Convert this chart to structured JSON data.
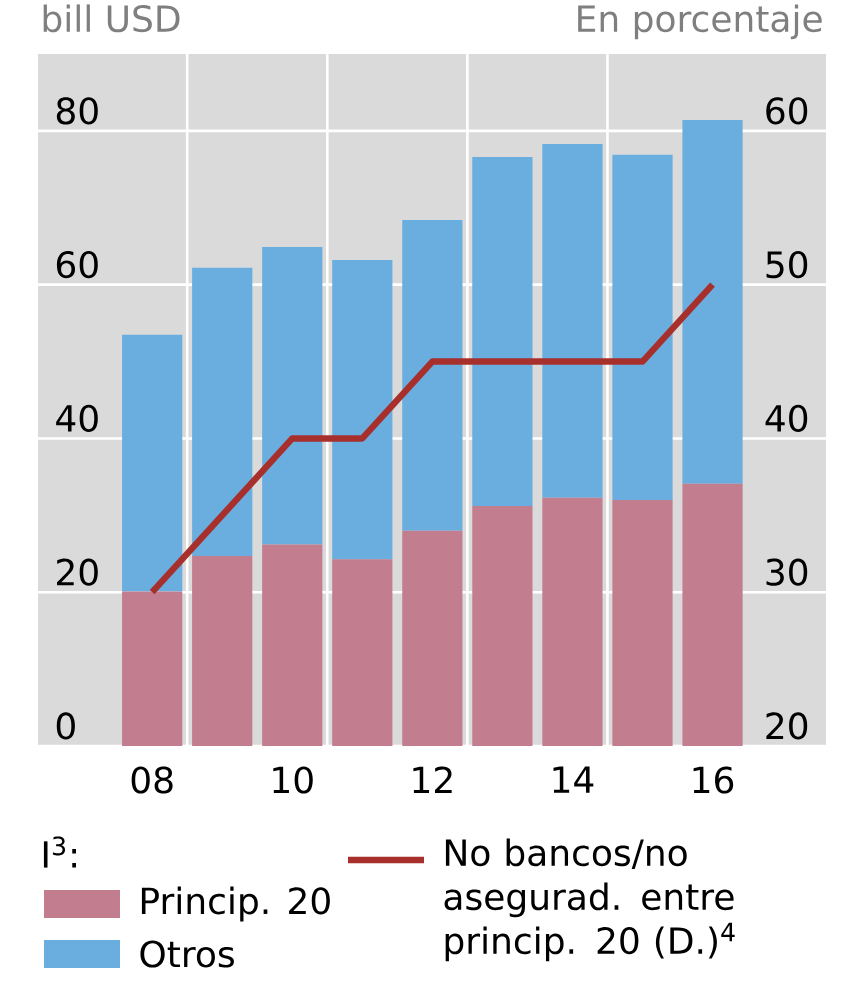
{
  "chart_data": {
    "type": "bar",
    "stacked": true,
    "ylabel": "bill USD",
    "y2label": "En porcentaje",
    "legend_title": "I$^{3}$:",
    "categories": [
      "08",
      null,
      "10",
      null,
      "12",
      null,
      "14",
      null,
      "16"
    ],
    "series": [
      {
        "name": "Princip. 20",
        "color": "#c27e8e",
        "values": [
          20.1,
          24.7,
          26.2,
          24.3,
          28.0,
          31.2,
          32.3,
          32.0,
          34.1
        ]
      },
      {
        "name": "Otros",
        "color": "#6aaee0",
        "values": [
          33.4,
          37.5,
          38.7,
          38.9,
          40.4,
          45.4,
          46.0,
          44.9,
          47.3
        ]
      },
      {
        "name": "No bancos/no asegurad. entre princip. 20 (D.)$^{4}$",
        "type": "line",
        "axis": "y2",
        "color": "#a8302c",
        "values": [
          30,
          35,
          40,
          40,
          45,
          45,
          45,
          45,
          50
        ]
      }
    ],
    "ylim": [
      0,
      90
    ],
    "yticks": [
      0,
      20,
      40,
      60,
      80
    ],
    "y2lim": [
      20,
      65
    ],
    "y2ticks": [
      20,
      30,
      40,
      50,
      60
    ],
    "grid": true,
    "legend": "bottom"
  }
}
